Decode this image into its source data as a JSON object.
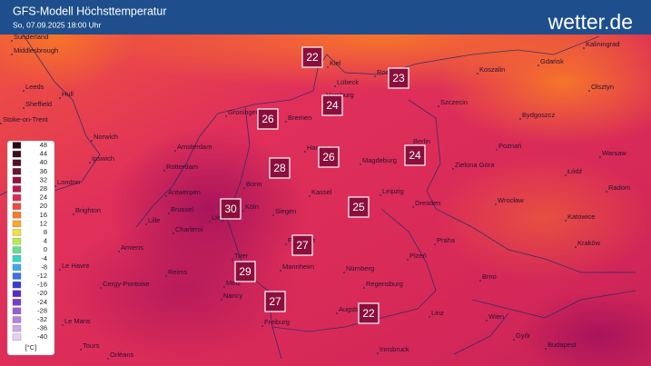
{
  "header": {
    "title": "GFS-Modell Höchsttemperatur",
    "subtitle": "So, 07.09.2025 18:00 Uhr",
    "logo": "wetter.de"
  },
  "legend": {
    "unit": "[°C]",
    "items": [
      {
        "value": 48,
        "color": "#2a0a14"
      },
      {
        "value": 44,
        "color": "#3d0c1c"
      },
      {
        "value": 40,
        "color": "#520f24"
      },
      {
        "value": 36,
        "color": "#6e1230"
      },
      {
        "value": 32,
        "color": "#93133e"
      },
      {
        "value": 28,
        "color": "#bd1950"
      },
      {
        "value": 24,
        "color": "#e02a55"
      },
      {
        "value": 20,
        "color": "#f04a3e"
      },
      {
        "value": 16,
        "color": "#f77a2a"
      },
      {
        "value": 12,
        "color": "#f9a82a"
      },
      {
        "value": 8,
        "color": "#f6de3a"
      },
      {
        "value": 4,
        "color": "#b8ee4a"
      },
      {
        "value": 0,
        "color": "#5fe08a"
      },
      {
        "value": -4,
        "color": "#33d6c6"
      },
      {
        "value": -8,
        "color": "#3aa8f0"
      },
      {
        "value": -12,
        "color": "#3a70e8"
      },
      {
        "value": -16,
        "color": "#3a3ad8"
      },
      {
        "value": -20,
        "color": "#5a2ac8"
      },
      {
        "value": -24,
        "color": "#7a3ad0"
      },
      {
        "value": -28,
        "color": "#9a5ad8"
      },
      {
        "value": -32,
        "color": "#b880e0"
      },
      {
        "value": -36,
        "color": "#d0a8ea"
      },
      {
        "value": -40,
        "color": "#e8d0f4"
      }
    ]
  },
  "temperatures": [
    22,
    23,
    24,
    26,
    28,
    26,
    24,
    30,
    25,
    27,
    29,
    27,
    22
  ],
  "cities": [
    "Sunderland",
    "Middlesbrough",
    "Leeds",
    "Hull",
    "Sheffield",
    "Stoke-on-Trent",
    "Norwich",
    "Ipswich",
    "London",
    "Brighton",
    "Amiens",
    "Le Havre",
    "Cergy-Pontoise",
    "Reims",
    "Le Mans",
    "Tours",
    "Orléans",
    "Lille",
    "Amsterdam",
    "Rotterdam",
    "Antwerpen",
    "Brussel",
    "Charleroi",
    "Liège",
    "Groningen",
    "Bremen",
    "Hamburg",
    "Kiel",
    "Lübeck",
    "Rostock",
    "Hannover",
    "Magdeburg",
    "Berlin",
    "Bonn",
    "Köln",
    "Kassel",
    "Siegen",
    "Frankfurt",
    "Mannheim",
    "Nürnberg",
    "Freiburg",
    "Augsburg",
    "Regensburg",
    "Leipzig",
    "Dresden",
    "Praha",
    "Plzeň",
    "Linz",
    "Wien",
    "Brno",
    "Szczecin",
    "Poznań",
    "Wrocław",
    "Kraków",
    "Łódź",
    "Warsaw",
    "Koszalin",
    "Gdańsk",
    "Olsztyn",
    "Bydgoszcz",
    "Kaliningrad",
    "Radom",
    "Katowice",
    "Zielona Góra",
    "Innsbruck",
    "Budapest",
    "Győr",
    "Metz",
    "Nancy",
    "Trier"
  ]
}
